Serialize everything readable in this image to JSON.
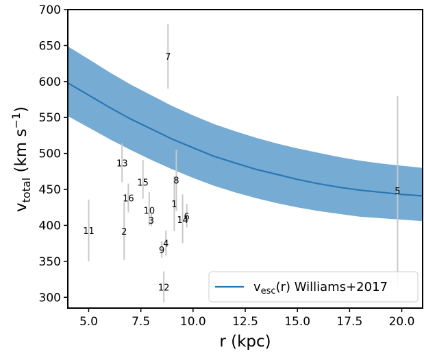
{
  "chart_data": {
    "type": "scatter",
    "xlabel": "r (kpc)",
    "ylabel": "v_total (km s^-1)",
    "ylabel_parts": {
      "v": "v",
      "sub": "total",
      "units": " (km s",
      "sup": "−1",
      "close": ")"
    },
    "xlim": [
      4.0,
      21.0
    ],
    "ylim": [
      285,
      700
    ],
    "xticks": [
      5.0,
      7.5,
      10.0,
      12.5,
      15.0,
      17.5,
      20.0
    ],
    "xtick_labels": [
      "5.0",
      "7.5",
      "10.0",
      "12.5",
      "15.0",
      "17.5",
      "20.0"
    ],
    "yticks": [
      300,
      350,
      400,
      450,
      500,
      550,
      600,
      650,
      700
    ],
    "ytick_labels": [
      "300",
      "350",
      "400",
      "450",
      "500",
      "550",
      "600",
      "650",
      "700"
    ],
    "grid": false,
    "legend_position": "bottom-right",
    "colors": {
      "band": "#76acd3",
      "line": "#2a76b5",
      "errorbar": "#c8c8c8",
      "axes": "#000000"
    },
    "escape_curve": {
      "legend_parts": {
        "v": "v",
        "sub": "esc",
        "rest": "(r) Williams+2017"
      },
      "x": [
        4.0,
        5.0,
        6.0,
        7.0,
        8.0,
        9.0,
        10.0,
        11.0,
        12.0,
        13.0,
        14.0,
        15.0,
        16.0,
        17.0,
        18.0,
        19.0,
        20.0,
        21.0
      ],
      "y": [
        598,
        581,
        564,
        548,
        534,
        520,
        508,
        496,
        487,
        478,
        471,
        464,
        458,
        453,
        449,
        446,
        443,
        441
      ],
      "lower": [
        552,
        536,
        520,
        505,
        491,
        478,
        466,
        455,
        446,
        438,
        431,
        425,
        420,
        416,
        412,
        410,
        408,
        406
      ],
      "upper": [
        649,
        631,
        613,
        596,
        581,
        566,
        553,
        541,
        531,
        522,
        514,
        507,
        501,
        495,
        490,
        486,
        483,
        480
      ]
    },
    "points": [
      {
        "label": "1",
        "x": 9.1,
        "y": 430,
        "yerr": [
          392,
          468
        ]
      },
      {
        "label": "2",
        "x": 6.7,
        "y": 392,
        "yerr": [
          352,
          432
        ]
      },
      {
        "label": "3",
        "x": 8.0,
        "y": 407,
        "yerr": [
          399,
          416
        ]
      },
      {
        "label": "4",
        "x": 8.7,
        "y": 375,
        "yerr": [
          358,
          393
        ]
      },
      {
        "label": "5",
        "x": 19.8,
        "y": 448,
        "yerr": [
          315,
          580
        ]
      },
      {
        "label": "6",
        "x": 9.7,
        "y": 413,
        "yerr": [
          397,
          430
        ]
      },
      {
        "label": "7",
        "x": 8.8,
        "y": 635,
        "yerr": [
          590,
          680
        ]
      },
      {
        "label": "8",
        "x": 9.2,
        "y": 463,
        "yerr": [
          420,
          505
        ]
      },
      {
        "label": "9",
        "x": 8.5,
        "y": 366,
        "yerr": [
          355,
          378
        ]
      },
      {
        "label": "10",
        "x": 7.9,
        "y": 421,
        "yerr": [
          400,
          446
        ]
      },
      {
        "label": "11",
        "x": 5.0,
        "y": 393,
        "yerr": [
          350,
          436
        ]
      },
      {
        "label": "12",
        "x": 8.6,
        "y": 314,
        "yerr": [
          293,
          336
        ]
      },
      {
        "label": "13",
        "x": 6.6,
        "y": 487,
        "yerr": [
          460,
          514
        ]
      },
      {
        "label": "14",
        "x": 9.5,
        "y": 408,
        "yerr": [
          375,
          443
        ]
      },
      {
        "label": "15",
        "x": 7.6,
        "y": 460,
        "yerr": [
          437,
          491
        ]
      },
      {
        "label": "16",
        "x": 6.9,
        "y": 438,
        "yerr": [
          418,
          458
        ]
      }
    ]
  }
}
